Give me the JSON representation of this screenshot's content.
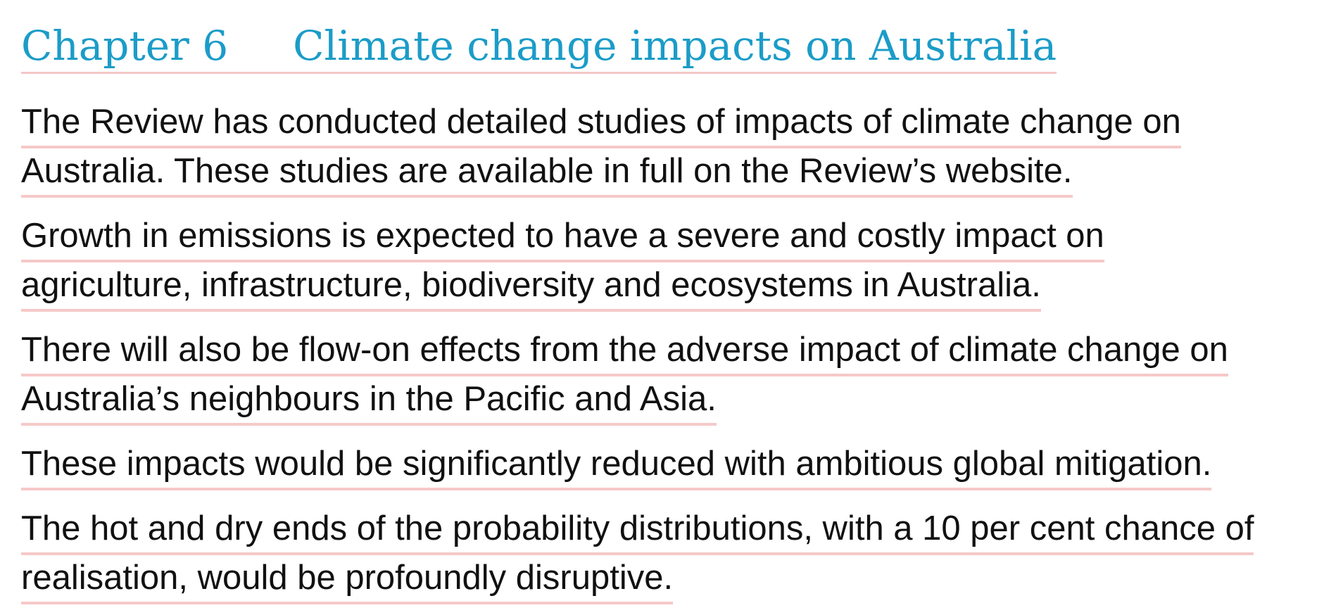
{
  "heading": {
    "chapter": "Chapter 6",
    "title": "Climate change impacts on Australia"
  },
  "paragraphs": [
    {
      "lines": [
        "The Review has conducted detailed studies of impacts of climate change on",
        "Australia. These studies are available in full on the Review’s website."
      ]
    },
    {
      "lines": [
        "Growth in emissions is expected to have a severe and costly impact on",
        "agriculture, infrastructure, biodiversity and ecosystems in Australia."
      ]
    },
    {
      "lines": [
        "There will also be flow-on effects from the adverse impact of climate change on",
        "Australia’s neighbours in the Pacific and Asia."
      ]
    },
    {
      "lines": [
        "These impacts would be significantly reduced with ambitious global mitigation."
      ]
    },
    {
      "lines": [
        "The hot and dry ends of the probability distributions, with a 10 per cent chance of",
        "realisation, would be profoundly disruptive."
      ]
    }
  ],
  "colors": {
    "heading": "#1b9cc8",
    "body_text": "#111111",
    "underline": "#f6c9c9",
    "background": "#ffffff"
  }
}
